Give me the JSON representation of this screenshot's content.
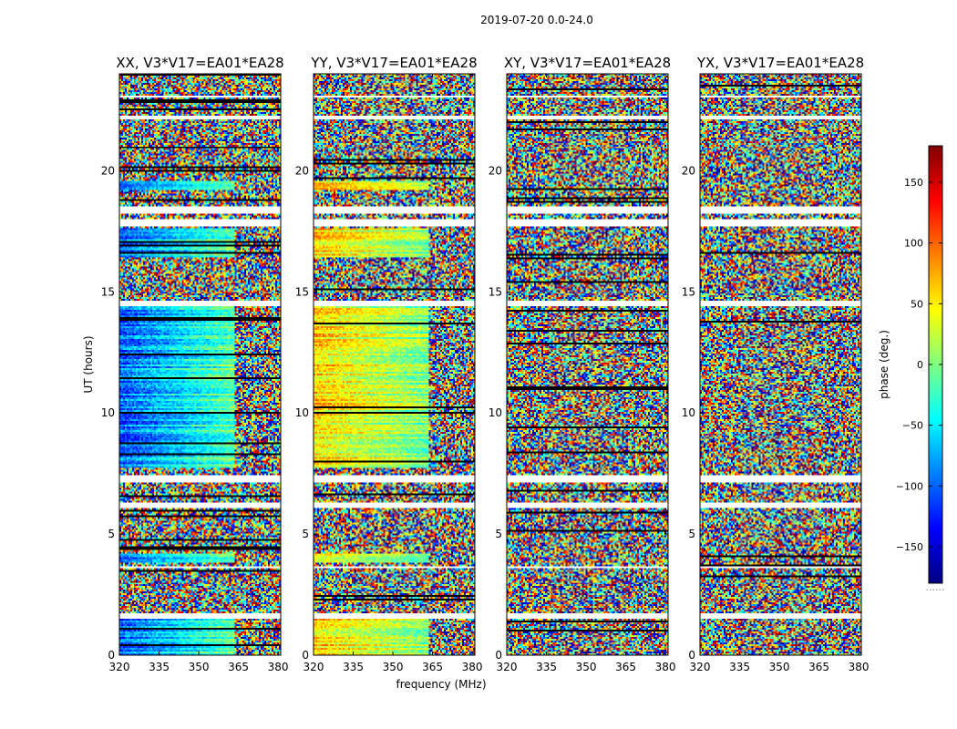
{
  "chart_data": {
    "type": "heatmap",
    "suptitle": "2019-07-20 0.0-24.0",
    "xlabel": "frequency (MHz)",
    "ylabel": "UT (hours)",
    "xlim": [
      320,
      381
    ],
    "ylim": [
      0,
      24
    ],
    "xticks": [
      320,
      335,
      350,
      365,
      380
    ],
    "yticks": [
      0,
      5,
      10,
      15,
      20
    ],
    "panels": [
      {
        "title": "XX, V3*V17=EA01*EA28",
        "pol": "XX",
        "mode": "coherent",
        "base": -100,
        "gradient": 90,
        "noisy_above_mhz": 364
      },
      {
        "title": "YY, V3*V17=EA01*EA28",
        "pol": "YY",
        "mode": "coherent",
        "base": 60,
        "gradient": -60,
        "noisy_above_mhz": 364
      },
      {
        "title": "XY, V3*V17=EA01*EA28",
        "pol": "XY",
        "mode": "noise"
      },
      {
        "title": "YX, V3*V17=EA01*EA28",
        "pol": "YX",
        "mode": "noise"
      }
    ],
    "coherent_intervals_hours": [
      [
        0,
        1.5
      ],
      [
        3.8,
        4.2
      ],
      [
        7.7,
        14.4
      ],
      [
        16.4,
        17.6
      ],
      [
        19.2,
        19.6
      ]
    ],
    "flagged_gaps_hours": [
      [
        1.5,
        1.7
      ],
      [
        3.6,
        3.7
      ],
      [
        6.1,
        6.3
      ],
      [
        7.1,
        7.4
      ],
      [
        14.4,
        14.6
      ],
      [
        17.7,
        18.0
      ],
      [
        18.2,
        18.5
      ],
      [
        22.1,
        22.3
      ],
      [
        23.0,
        23.1
      ]
    ],
    "colorbar": {
      "label": "phase (deg.)",
      "range": [
        -180,
        180
      ],
      "ticks": [
        -150,
        -100,
        -50,
        0,
        50,
        100,
        150
      ],
      "tick_labels": [
        "−150",
        "−100",
        "−50",
        "0",
        "50",
        "100",
        "150"
      ],
      "colormap": "jet",
      "footnote": "......"
    }
  }
}
